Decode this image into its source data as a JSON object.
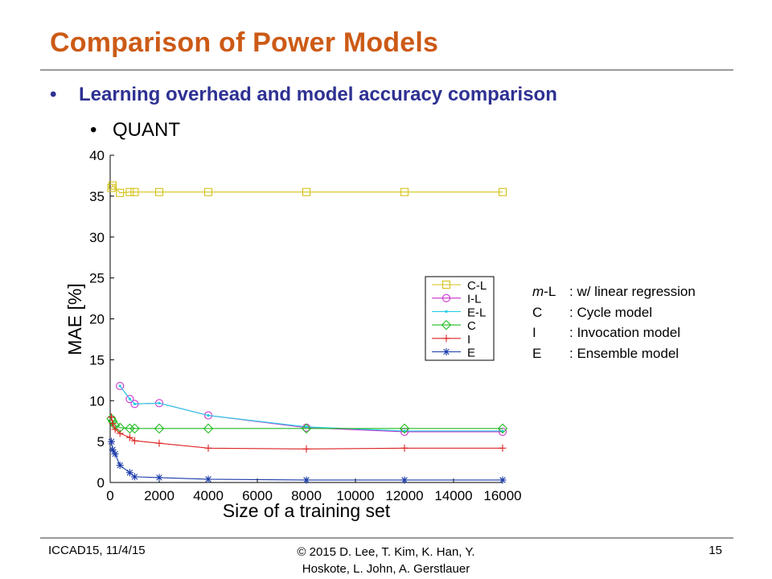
{
  "slide": {
    "title": "Comparison of Power Models",
    "bullet_1": "Learning overhead and model accuracy comparison",
    "bullet_2": "QUANT",
    "bullet_symbol": "•"
  },
  "legend_notes": [
    {
      "abbr": "m-L",
      "abbr_italic_part": "m",
      "abbr_rest": "-L",
      "desc": ": w/ linear regression"
    },
    {
      "abbr": "C",
      "desc": ": Cycle model"
    },
    {
      "abbr": "I",
      "desc": ": Invocation model"
    },
    {
      "abbr": "E",
      "desc": ": Ensemble model"
    }
  ],
  "footer": {
    "left": "ICCAD15,  11/4/15",
    "center_line1": "© 2015 D. Lee, T. Kim, K. Han, Y.",
    "center_line2": "Hoskote, L. John, A. Gerstlauer",
    "page": "15"
  },
  "chart_data": {
    "type": "line",
    "xlabel": "Size of a training set",
    "ylabel": "MAE [%]",
    "xlim": [
      0,
      16000
    ],
    "ylim": [
      0,
      40
    ],
    "xticks": [
      0,
      2000,
      4000,
      6000,
      8000,
      10000,
      12000,
      14000,
      16000
    ],
    "yticks": [
      0,
      5,
      10,
      15,
      20,
      25,
      30,
      35,
      40
    ],
    "grid": false,
    "legend_position": "center-right",
    "series": [
      {
        "name": "C-L",
        "color": "#d4c21a",
        "marker": "square",
        "x": [
          50,
          100,
          400,
          800,
          1000,
          2000,
          4000,
          8000,
          12000,
          16000
        ],
        "y": [
          36.0,
          36.3,
          35.4,
          35.5,
          35.5,
          35.5,
          35.5,
          35.5,
          35.5,
          35.5
        ]
      },
      {
        "name": "I-L",
        "color": "#cc33cc",
        "marker": "circle",
        "x": [
          400,
          800,
          1000,
          2000,
          4000,
          8000,
          12000,
          16000
        ],
        "y": [
          11.8,
          10.2,
          9.6,
          9.7,
          8.2,
          6.7,
          6.2,
          6.2
        ]
      },
      {
        "name": "E-L",
        "color": "#22cfe8",
        "marker": "dot",
        "x": [
          400,
          800,
          1000,
          2000,
          4000,
          8000,
          12000,
          16000
        ],
        "y": [
          11.8,
          10.2,
          9.6,
          9.7,
          8.2,
          6.8,
          6.3,
          6.3
        ]
      },
      {
        "name": "C",
        "color": "#22bb22",
        "marker": "diamond",
        "x": [
          50,
          100,
          200,
          400,
          800,
          1000,
          2000,
          4000,
          8000,
          12000,
          16000
        ],
        "y": [
          7.8,
          7.5,
          7.0,
          6.7,
          6.6,
          6.6,
          6.6,
          6.6,
          6.6,
          6.6,
          6.6
        ]
      },
      {
        "name": "I",
        "color": "#dd2222",
        "marker": "plus",
        "x": [
          50,
          100,
          200,
          400,
          800,
          1000,
          2000,
          4000,
          8000,
          12000,
          16000
        ],
        "y": [
          8.0,
          7.2,
          6.5,
          6.0,
          5.5,
          5.1,
          4.8,
          4.2,
          4.1,
          4.2,
          4.2
        ]
      },
      {
        "name": "E",
        "color": "#1a3aa8",
        "marker": "asterisk",
        "x": [
          50,
          100,
          200,
          400,
          800,
          1000,
          2000,
          4000,
          8000,
          12000,
          16000
        ],
        "y": [
          5.0,
          4.0,
          3.5,
          2.1,
          1.2,
          0.7,
          0.6,
          0.4,
          0.3,
          0.3,
          0.3
        ]
      }
    ]
  }
}
